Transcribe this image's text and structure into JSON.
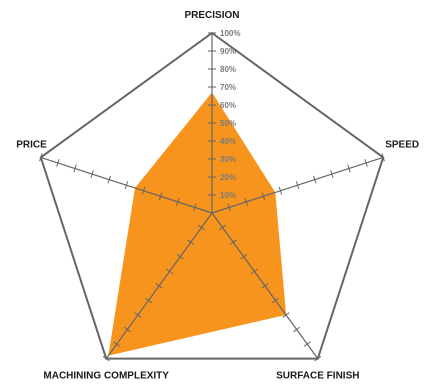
{
  "chart_data": {
    "type": "radar",
    "axes": [
      "PRECISION",
      "SPEED",
      "SURFACE FINISH",
      "MACHINING COMPLEXITY",
      "PRICE"
    ],
    "series": [
      {
        "values": [
          67,
          37,
          70,
          98,
          45
        ]
      }
    ],
    "rlim": [
      0,
      100
    ],
    "rticks": [
      "10%",
      "20%",
      "30%",
      "40%",
      "50%",
      "60%",
      "70%",
      "80%",
      "90%",
      "100%"
    ],
    "grid": false,
    "legend": "none",
    "colors": {
      "fill": "#f7941d",
      "outline": "#666666",
      "axis": "#666666"
    }
  }
}
